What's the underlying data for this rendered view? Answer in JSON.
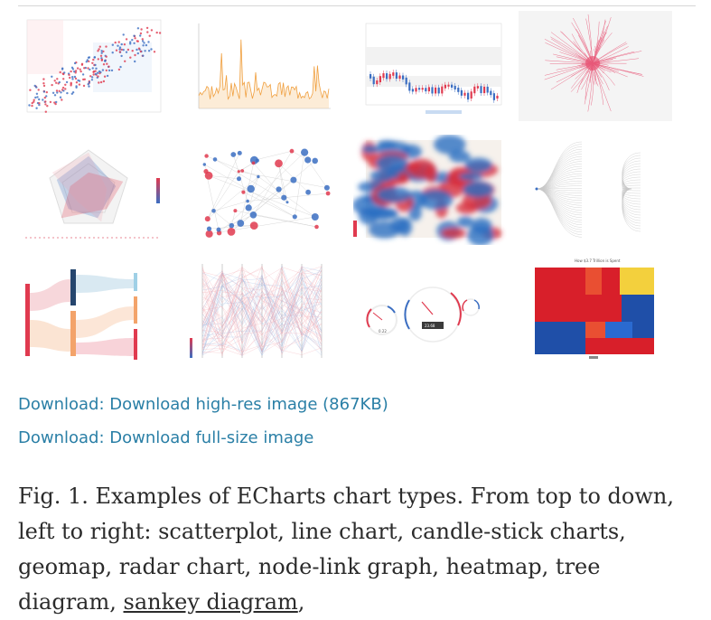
{
  "figure": {
    "tiles": [
      {
        "name": "scatterplot"
      },
      {
        "name": "line-chart"
      },
      {
        "name": "candlestick-chart"
      },
      {
        "name": "geomap"
      },
      {
        "name": "radar-chart"
      },
      {
        "name": "node-link-graph"
      },
      {
        "name": "heatmap"
      },
      {
        "name": "tree-diagram"
      },
      {
        "name": "sankey-diagram"
      },
      {
        "name": "parallel-coordinates"
      },
      {
        "name": "gauge"
      },
      {
        "name": "treemap"
      }
    ],
    "gauge_readout": "23.68",
    "gauge_left_readout": "0.22",
    "treemap_title": "How $3.7 Trillion is Spent"
  },
  "links": {
    "download_highres": "Download: Download high-res image (867KB)",
    "download_fullsize": "Download: Download full-size image"
  },
  "caption": {
    "text": "Fig. 1. Examples of ECharts chart types. From top to down, left to right: scatterplot, line chart, candle-stick charts, geomap, radar chart, node-link graph, heatmap, tree diagram, ",
    "link": "sankey diagram",
    "tail": ","
  }
}
